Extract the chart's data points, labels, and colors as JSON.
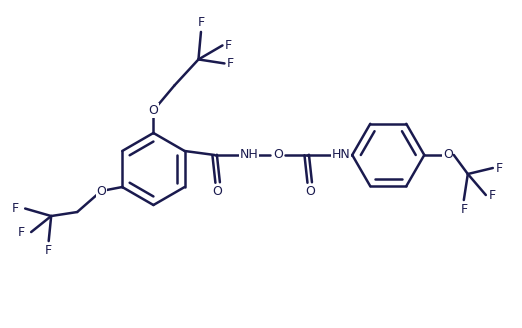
{
  "bg_color": "#ffffff",
  "line_color": "#1a1a4e",
  "text_color": "#1a1a4e",
  "line_width": 1.8,
  "font_size": 9,
  "fig_width": 5.22,
  "fig_height": 3.28,
  "xlim": [
    0,
    10
  ],
  "ylim": [
    0,
    6.5
  ]
}
